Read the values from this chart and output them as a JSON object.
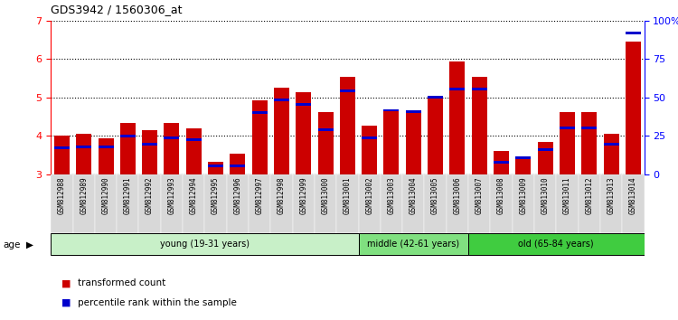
{
  "title": "GDS3942 / 1560306_at",
  "samples": [
    "GSM812988",
    "GSM812989",
    "GSM812990",
    "GSM812991",
    "GSM812992",
    "GSM812993",
    "GSM812994",
    "GSM812995",
    "GSM812996",
    "GSM812997",
    "GSM812998",
    "GSM812999",
    "GSM813000",
    "GSM813001",
    "GSM813002",
    "GSM813003",
    "GSM813004",
    "GSM813005",
    "GSM813006",
    "GSM813007",
    "GSM813008",
    "GSM813009",
    "GSM813010",
    "GSM813011",
    "GSM813012",
    "GSM813013",
    "GSM813014"
  ],
  "transformed_count": [
    4.0,
    4.05,
    3.95,
    4.35,
    4.15,
    4.35,
    4.2,
    3.32,
    3.55,
    4.93,
    5.25,
    5.15,
    4.62,
    5.55,
    4.28,
    4.67,
    4.63,
    5.02,
    5.93,
    5.55,
    3.62,
    3.43,
    3.85,
    4.62,
    4.62,
    4.05,
    6.45
  ],
  "percentile_rank": [
    3.7,
    3.72,
    3.72,
    4.0,
    3.78,
    3.95,
    3.9,
    3.22,
    3.22,
    4.62,
    4.95,
    4.82,
    4.17,
    5.18,
    3.95,
    4.67,
    4.63,
    5.02,
    5.23,
    5.23,
    3.32,
    3.43,
    3.65,
    4.22,
    4.22,
    3.78,
    6.68
  ],
  "groups": [
    {
      "label": "young (19-31 years)",
      "start": 0,
      "end": 14,
      "color": "#c8f0c8"
    },
    {
      "label": "middle (42-61 years)",
      "start": 14,
      "end": 19,
      "color": "#80e080"
    },
    {
      "label": "old (65-84 years)",
      "start": 19,
      "end": 27,
      "color": "#40cc40"
    }
  ],
  "bar_color": "#cc0000",
  "percentile_color": "#0000cc",
  "ylim_left": [
    3,
    7
  ],
  "ylim_right": [
    0,
    100
  ],
  "yticks_left": [
    3,
    4,
    5,
    6,
    7
  ],
  "yticks_right": [
    0,
    25,
    50,
    75,
    100
  ],
  "bar_width": 0.7,
  "tick_bg_color": "#d8d8d8"
}
